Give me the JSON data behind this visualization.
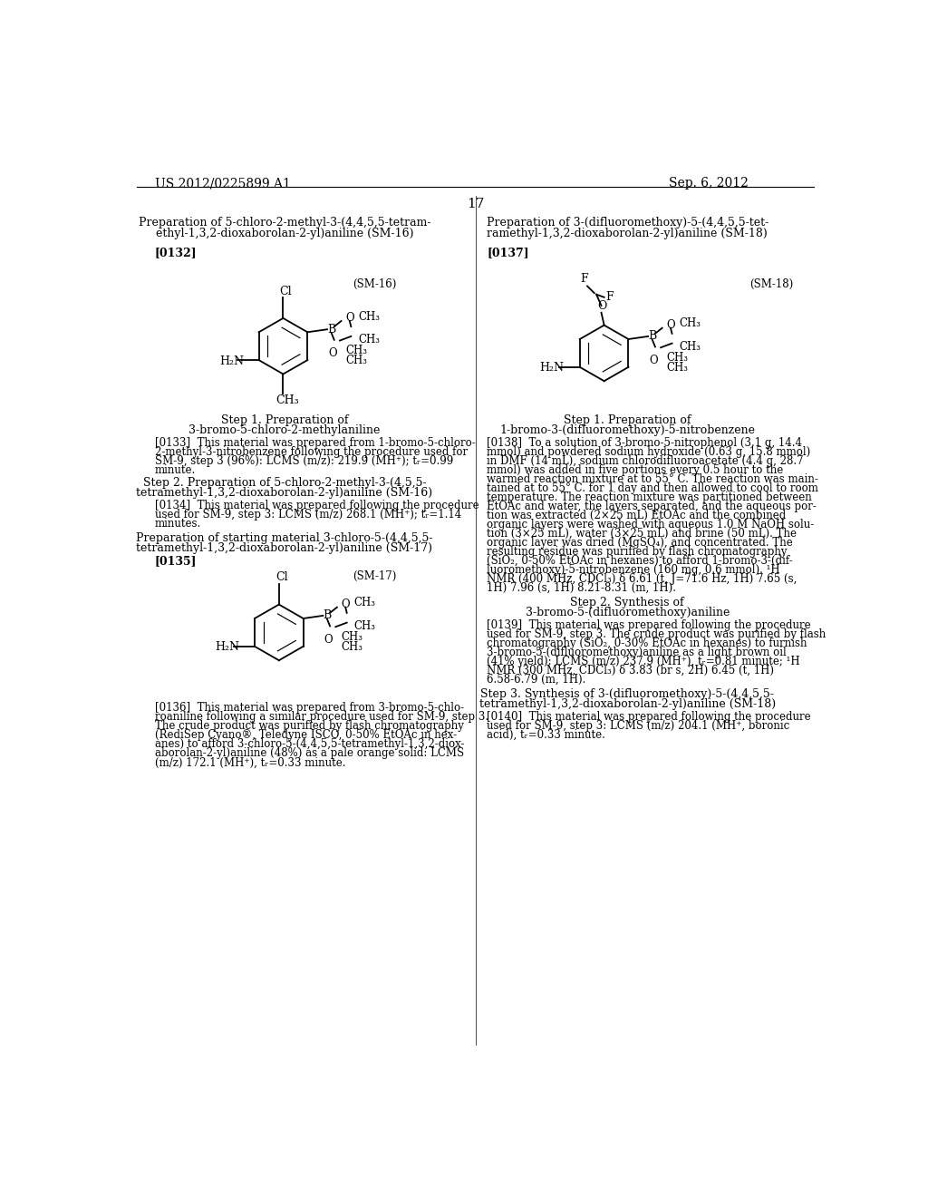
{
  "page_number": "17",
  "patent_number": "US 2012/0225899 A1",
  "patent_date": "Sep. 6, 2012",
  "background_color": "#ffffff",
  "text_color": "#000000",
  "left_section": {
    "title_line1": "Preparation of 5-chloro-2-methyl-3-(4,4,5,5-tetram-",
    "title_line2": "ethyl-1,3,2-dioxaborolan-2-yl)aniline (SM-16)",
    "ref": "[0132]",
    "label": "(SM-16)",
    "step1_line1": "Step 1. Preparation of",
    "step1_line2": "3-bromo-5-chloro-2-methylaniline",
    "para133_line1": "[0133]  This material was prepared from 1-bromo-5-chloro-",
    "para133_line2": "2-methyl-3-nitrobenzene following the procedure used for",
    "para133_line3": "SM-9, step 3 (96%): LCMS (m/z): 219.9 (MH⁺); tᵣ=0.99",
    "para133_line4": "minute.",
    "step2_line1": "Step 2. Preparation of 5-chloro-2-methyl-3-(4,5,5-",
    "step2_line2": "tetramethyl-1,3,2-dioxaborolan-2-yl)aniline (SM-16)",
    "para134_line1": "[0134]  This material was prepared following the procedure",
    "para134_line2": "used for SM-9, step 3: LCMS (m/z) 268.1 (MH⁺); tᵣ=1.14",
    "para134_line3": "minutes.",
    "prep17_line1": "Preparation of starting material 3-chloro-5-(4,4,5,5-",
    "prep17_line2": "tetramethyl-1,3,2-dioxaborolan-2-yl)aniline (SM-17)",
    "para135": "[0135]",
    "label_sm17": "(SM-17)",
    "para136_line1": "[0136]  This material was prepared from 3-bromo-5-chlo-",
    "para136_line2": "roaniline following a similar procedure used for SM-9, step 3.",
    "para136_line3": "The crude product was purified by flash chromatography",
    "para136_line4": "(RediSep Cyano®, Teledyne ISCO, 0-50% EtOAc in hex-",
    "para136_line5": "anes) to afford 3-chloro-5-(4,4,5,5-tetramethyl-1,3,2-diox-",
    "para136_line6": "aborolan-2-yl)aniline (48%) as a pale orange solid: LCMS",
    "para136_line7": "(m/z) 172.1 (MH⁺), tᵣ=0.33 minute."
  },
  "right_section": {
    "title_line1": "Preparation of 3-(difluoromethoxy)-5-(4,4,5,5-tet-",
    "title_line2": "ramethyl-1,3,2-dioxaborolan-2-yl)aniline (SM-18)",
    "ref": "[0137]",
    "label": "(SM-18)",
    "step1_line1": "Step 1. Preparation of",
    "step1_line2": "1-bromo-3-(difluoromethoxy)-5-nitrobenzene",
    "para138_line1": "[0138]  To a solution of 3-bromo-5-nitrophenol (3.1 g, 14.4",
    "para138_line2": "mmol) and powdered sodium hydroxide (0.63 g, 15.8 mmol)",
    "para138_line3": "in DMF (14 mL), sodium chlorodifluoroacetate (4.4 g, 28.7",
    "para138_line4": "mmol) was added in five portions every 0.5 hour to the",
    "para138_line5": "warmed reaction mixture at to 55° C. The reaction was main-",
    "para138_line6": "tained at to 55° C. for 1 day and then allowed to cool to room",
    "para138_line7": "temperature. The reaction mixture was partitioned between",
    "para138_line8": "EtOAc and water, the layers separated, and the aqueous por-",
    "para138_line9": "tion was extracted (2×25 mL) EtOAc and the combined",
    "para138_line10": "organic layers were washed with aqueous 1.0 M NaOH solu-",
    "para138_line11": "tion (3×25 mL), water (3×25 mL) and brine (50 mL). The",
    "para138_line12": "organic layer was dried (MgSO₄), and concentrated. The",
    "para138_line13": "resulting residue was purified by flash chromatography",
    "para138_line14": "(SiO₂, 0-50% EtOAc in hexanes) to afford 1-bromo-3-(dif-",
    "para138_line15": "luoromethoxy)-5-nitrobenzene (160 mg, 0.6 mmol). ¹H",
    "para138_line16": "NMR (400 MHz, CDCl₃) δ 6.61 (t, J=71.6 Hz, 1H) 7.65 (s,",
    "para138_line17": "1H) 7.96 (s, 1H) 8.21-8.31 (m, 1H).",
    "step2_line1": "Step 2. Synthesis of",
    "step2_line2": "3-bromo-5-(difluoromethoxy)aniline",
    "para139_line1": "[0139]  This material was prepared following the procedure",
    "para139_line2": "used for SM-9, step 3. The crude product was purified by flash",
    "para139_line3": "chromatography (SiO₂, 0-30% EtOAc in hexanes) to furnish",
    "para139_line4": "3-bromo-5-(difluoromethoxy)aniline as a light brown oil",
    "para139_line5": "(41% yield): LCMS (m/z) 237.9 (MH⁺), tᵣ=0.81 minute; ¹H",
    "para139_line6": "NMR (300 MHz, CDCl₃) δ 3.83 (br s, 2H) 6.45 (t, 1H)",
    "para139_line7": "6.58-6.79 (m, 1H).",
    "step3_line1": "Step 3. Synthesis of 3-(difluoromethoxy)-5-(4,4,5,5-",
    "step3_line2": "tetramethyl-1,3,2-dioxaborolan-2-yl)aniline (SM-18)",
    "para140_line1": "[0140]  This material was prepared following the procedure",
    "para140_line2": "used for SM-9, step 3: LCMS (m/z) 204.1 (MH⁺, boronic",
    "para140_line3": "acid), tᵣ=0.33 minute."
  }
}
